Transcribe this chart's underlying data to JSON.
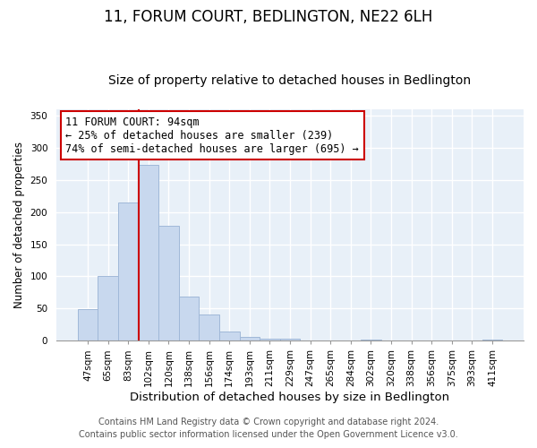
{
  "title": "11, FORUM COURT, BEDLINGTON, NE22 6LH",
  "subtitle": "Size of property relative to detached houses in Bedlington",
  "xlabel": "Distribution of detached houses by size in Bedlington",
  "ylabel": "Number of detached properties",
  "bar_labels": [
    "47sqm",
    "65sqm",
    "83sqm",
    "102sqm",
    "120sqm",
    "138sqm",
    "156sqm",
    "174sqm",
    "193sqm",
    "211sqm",
    "229sqm",
    "247sqm",
    "265sqm",
    "284sqm",
    "302sqm",
    "320sqm",
    "338sqm",
    "356sqm",
    "375sqm",
    "393sqm",
    "411sqm"
  ],
  "bar_values": [
    49,
    101,
    215,
    273,
    178,
    68,
    41,
    14,
    6,
    3,
    3,
    0,
    0,
    0,
    2,
    0,
    0,
    0,
    0,
    0,
    2
  ],
  "bar_color": "#c8d8ee",
  "bar_edge_color": "#a0b8d8",
  "vline_color": "#cc0000",
  "vline_x_index": 3,
  "annotation_title": "11 FORUM COURT: 94sqm",
  "annotation_line1": "← 25% of detached houses are smaller (239)",
  "annotation_line2": "74% of semi-detached houses are larger (695) →",
  "annotation_box_color": "#ffffff",
  "annotation_box_edge": "#cc0000",
  "plot_bg_color": "#e8f0f8",
  "fig_bg_color": "#ffffff",
  "ylim": [
    0,
    360
  ],
  "yticks": [
    0,
    50,
    100,
    150,
    200,
    250,
    300,
    350
  ],
  "footer1": "Contains HM Land Registry data © Crown copyright and database right 2024.",
  "footer2": "Contains public sector information licensed under the Open Government Licence v3.0.",
  "title_fontsize": 12,
  "subtitle_fontsize": 10,
  "xlabel_fontsize": 9.5,
  "ylabel_fontsize": 8.5,
  "tick_fontsize": 7.5,
  "footer_fontsize": 7,
  "annotation_fontsize": 8.5
}
